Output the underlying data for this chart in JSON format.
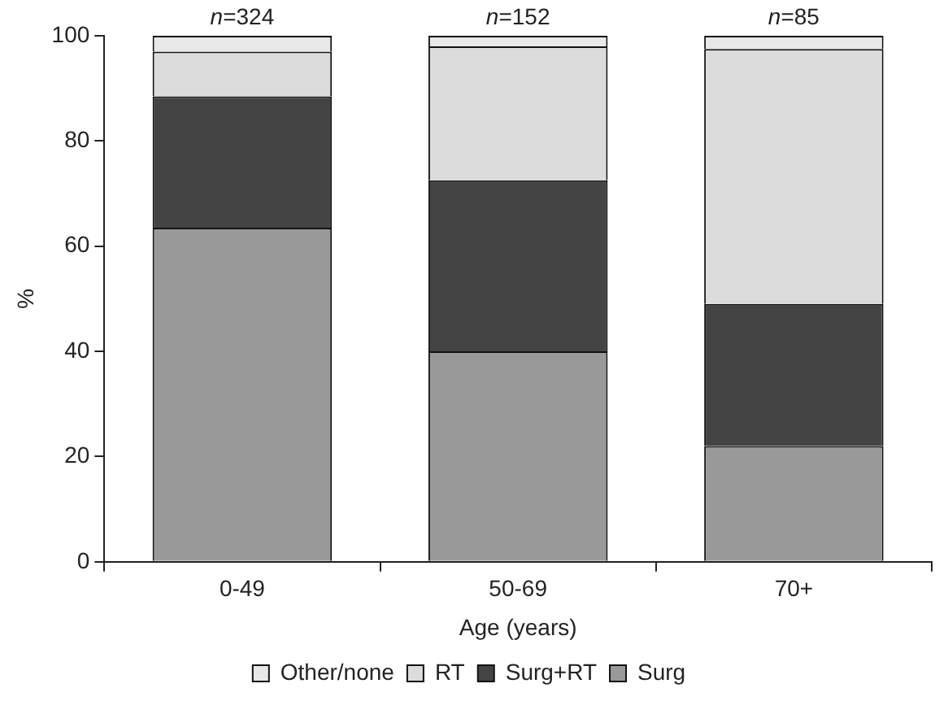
{
  "chart_data": {
    "type": "bar",
    "stacked": true,
    "xlabel": "Age (years)",
    "ylabel": "%",
    "categories": [
      "0-49",
      "50-69",
      "70+"
    ],
    "series": [
      {
        "name": "Surg",
        "color": "#999999",
        "values": [
          63.5,
          40,
          22
        ]
      },
      {
        "name": "Surg+RT",
        "color": "#444444",
        "values": [
          25,
          32.5,
          27
        ]
      },
      {
        "name": "RT",
        "color": "#dcdcdc",
        "values": [
          8.5,
          25.5,
          48.5
        ]
      },
      {
        "name": "Other/none",
        "color": "#e8e8e8",
        "values": [
          3,
          2,
          2.5
        ]
      }
    ],
    "ylim": [
      0,
      100
    ],
    "yticks": [
      0,
      20,
      40,
      60,
      80,
      100
    ],
    "grid": false,
    "legend": "bottom",
    "annotations": [
      {
        "text": "n=324",
        "x": "0-49",
        "y": 100
      },
      {
        "text": "n=152",
        "x": "50-69",
        "y": 100
      },
      {
        "text": "n=85",
        "x": "70+",
        "y": 100
      }
    ]
  }
}
